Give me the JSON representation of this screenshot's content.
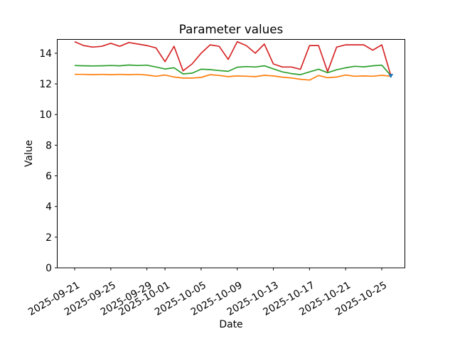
{
  "chart_data": {
    "type": "line",
    "title": "Parameter values",
    "xlabel": "Date",
    "ylabel": "Value",
    "ylim": [
      0,
      14.9
    ],
    "grid": false,
    "legend": null,
    "yticks": [
      0,
      2,
      4,
      6,
      8,
      10,
      12,
      14
    ],
    "xtick_labels": [
      "2025-09-21",
      "2025-09-25",
      "2025-09-29",
      "2025-10-01",
      "2025-10-05",
      "2025-10-09",
      "2025-10-13",
      "2025-10-17",
      "2025-10-21",
      "2025-10-25"
    ],
    "x": [
      "2025-09-21",
      "2025-09-22",
      "2025-09-23",
      "2025-09-24",
      "2025-09-25",
      "2025-09-26",
      "2025-09-27",
      "2025-09-28",
      "2025-09-29",
      "2025-09-30",
      "2025-10-01",
      "2025-10-02",
      "2025-10-03",
      "2025-10-04",
      "2025-10-05",
      "2025-10-06",
      "2025-10-07",
      "2025-10-08",
      "2025-10-09",
      "2025-10-10",
      "2025-10-11",
      "2025-10-12",
      "2025-10-13",
      "2025-10-14",
      "2025-10-15",
      "2025-10-16",
      "2025-10-17",
      "2025-10-18",
      "2025-10-19",
      "2025-10-20",
      "2025-10-21",
      "2025-10-22",
      "2025-10-23",
      "2025-10-24",
      "2025-10-25",
      "2025-10-26"
    ],
    "series": [
      {
        "name": "orange",
        "color": "#ff7f0e",
        "values": [
          12.62,
          12.62,
          12.6,
          12.62,
          12.6,
          12.62,
          12.6,
          12.62,
          12.58,
          12.5,
          12.58,
          12.45,
          12.38,
          12.38,
          12.42,
          12.6,
          12.55,
          12.47,
          12.52,
          12.5,
          12.47,
          12.56,
          12.52,
          12.44,
          12.39,
          12.3,
          12.25,
          12.55,
          12.4,
          12.45,
          12.58,
          12.5,
          12.52,
          12.5,
          12.56,
          12.5
        ]
      },
      {
        "name": "green",
        "color": "#2ca02c",
        "values": [
          13.2,
          13.18,
          13.17,
          13.18,
          13.2,
          13.18,
          13.23,
          13.2,
          13.22,
          13.1,
          12.97,
          13.05,
          12.65,
          12.7,
          12.96,
          12.93,
          12.87,
          12.82,
          13.09,
          13.13,
          13.1,
          13.18,
          12.98,
          12.78,
          12.67,
          12.6,
          12.78,
          12.96,
          12.73,
          12.92,
          13.05,
          13.15,
          13.11,
          13.18,
          13.22,
          12.55
        ]
      },
      {
        "name": "red",
        "color": "#d62728",
        "values": [
          14.75,
          14.5,
          14.4,
          14.45,
          14.65,
          14.45,
          14.7,
          14.6,
          14.5,
          14.35,
          13.45,
          14.45,
          12.85,
          13.3,
          14.0,
          14.55,
          14.45,
          13.6,
          14.75,
          14.5,
          14.0,
          14.6,
          13.3,
          13.1,
          13.1,
          12.95,
          14.5,
          14.5,
          12.8,
          14.4,
          14.55,
          14.55,
          14.55,
          14.2,
          14.55,
          12.55
        ]
      }
    ],
    "end_marker": {
      "name": "blue",
      "color": "#1f77b4",
      "shape": "triangle-down",
      "date": "2025-10-26",
      "value": 12.55
    }
  }
}
